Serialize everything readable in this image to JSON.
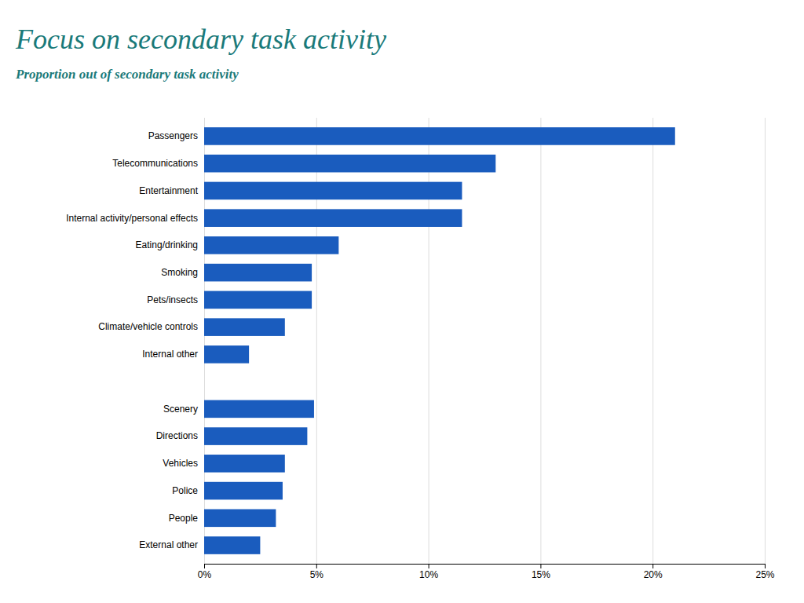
{
  "chart_data": {
    "type": "bar",
    "orientation": "horizontal",
    "title": "Focus on secondary task activity",
    "subtitle": "Proportion out of secondary task activity",
    "categories": [
      "Passengers",
      "Telecommunications",
      "Entertainment",
      "Internal activity/personal effects",
      "Eating/drinking",
      "Smoking",
      "Pets/insects",
      "Climate/vehicle controls",
      "Internal other",
      null,
      "Scenery",
      "Directions",
      "Vehicles",
      "Police",
      "People",
      "External other"
    ],
    "values": [
      21.0,
      13.0,
      11.5,
      11.5,
      6.0,
      4.8,
      4.8,
      3.6,
      2.0,
      0,
      4.9,
      4.6,
      3.6,
      3.5,
      3.2,
      2.5
    ],
    "color": "#1a5cbe",
    "xlim": [
      0,
      25
    ],
    "xticks": [
      {
        "value": 0,
        "label": "0%"
      },
      {
        "value": 5,
        "label": "5%"
      },
      {
        "value": 10,
        "label": "10%"
      },
      {
        "value": 15,
        "label": "15%"
      },
      {
        "value": 20,
        "label": "20%"
      },
      {
        "value": 25,
        "label": "25%"
      }
    ],
    "grid": true
  }
}
